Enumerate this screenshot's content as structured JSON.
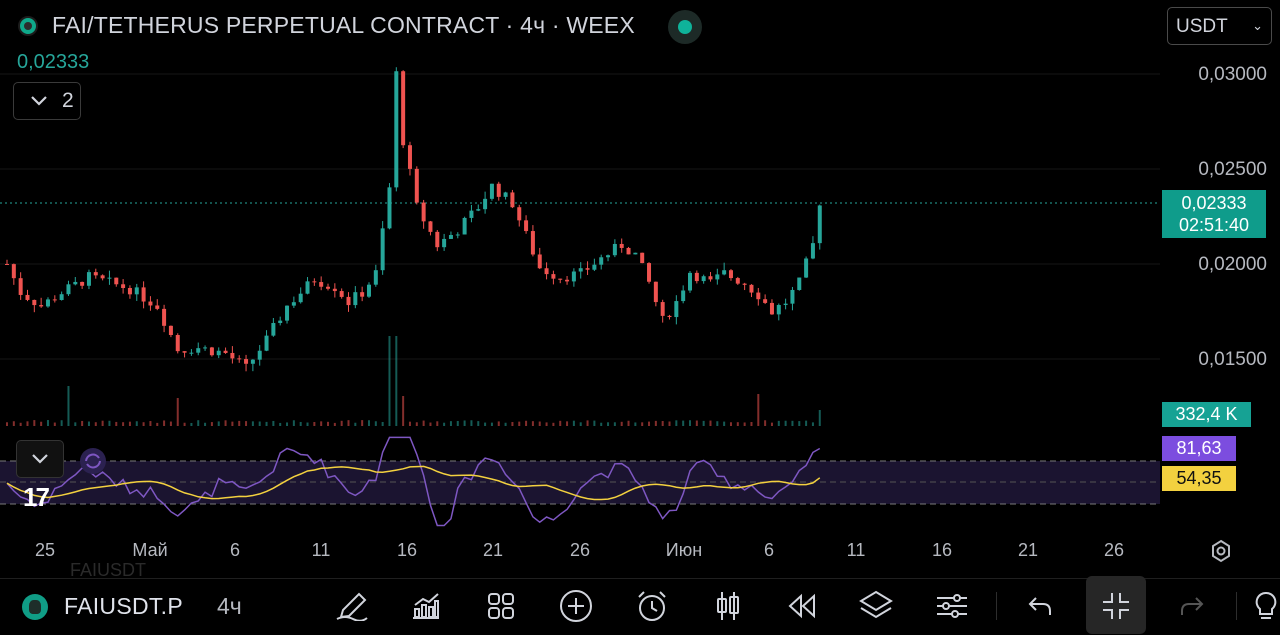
{
  "header": {
    "title": "FAI/TETHERUS PERPETUAL CONTRACT · 4ч · WEEX",
    "last_value": "0,02333",
    "collapse_count": "2",
    "currency": "USDT"
  },
  "price_axis": {
    "labels": [
      "0,03000",
      "0,02500",
      "0,02000",
      "0,01500"
    ],
    "current_price": "0,02333",
    "countdown": "02:51:40",
    "volume_tag": "332,4 K",
    "rsi_tag": "81,63",
    "rsi_ma_tag": "54,35"
  },
  "time_axis": [
    "25",
    "Май",
    "6",
    "11",
    "16",
    "21",
    "26",
    "Июн",
    "6",
    "11",
    "16",
    "21",
    "26"
  ],
  "toolbar": {
    "symbol": "FAIUSDT.P",
    "symbol_ghost": "FAIUSDT",
    "interval": "4ч",
    "icons": [
      "pencil-icon",
      "indicators-icon",
      "layout-grid-icon",
      "add-icon",
      "alarm-icon",
      "candles-icon",
      "replay-icon",
      "layers-icon",
      "settings-sliders-icon",
      "undo-icon",
      "fullscreen-exit-icon",
      "redo-icon"
    ]
  },
  "colors": {
    "up": "#26a69a",
    "down": "#ef5350",
    "rsi": "#7e57c2",
    "rsi_ma": "#f3d13f",
    "price_line": "#26a69a"
  },
  "chart_data": {
    "type": "candlestick",
    "y_axis_ticks": [
      0.03,
      0.025,
      0.02,
      0.015
    ],
    "current_price": 0.02333,
    "price_path": [
      [
        0,
        0.02
      ],
      [
        2,
        0.0185
      ],
      [
        5,
        0.0178
      ],
      [
        8,
        0.0185
      ],
      [
        12,
        0.0193
      ],
      [
        15,
        0.019
      ],
      [
        18,
        0.0187
      ],
      [
        22,
        0.0178
      ],
      [
        25,
        0.0155
      ],
      [
        28,
        0.0156
      ],
      [
        32,
        0.0153
      ],
      [
        35,
        0.0145
      ],
      [
        38,
        0.016
      ],
      [
        41,
        0.0178
      ],
      [
        45,
        0.0192
      ],
      [
        48,
        0.0188
      ],
      [
        50,
        0.018
      ],
      [
        52,
        0.0185
      ],
      [
        54,
        0.0195
      ],
      [
        56,
        0.024
      ],
      [
        57,
        0.03
      ],
      [
        58,
        0.0265
      ],
      [
        60,
        0.023
      ],
      [
        63,
        0.021
      ],
      [
        66,
        0.0218
      ],
      [
        69,
        0.023
      ],
      [
        71,
        0.0241
      ],
      [
        74,
        0.0232
      ],
      [
        76,
        0.0215
      ],
      [
        78,
        0.0198
      ],
      [
        81,
        0.0193
      ],
      [
        84,
        0.0195
      ],
      [
        87,
        0.0203
      ],
      [
        90,
        0.021
      ],
      [
        92,
        0.0205
      ],
      [
        94,
        0.019
      ],
      [
        96,
        0.017
      ],
      [
        98,
        0.018
      ],
      [
        100,
        0.0196
      ],
      [
        103,
        0.019
      ],
      [
        105,
        0.0195
      ],
      [
        108,
        0.019
      ],
      [
        110,
        0.0184
      ],
      [
        112,
        0.0175
      ],
      [
        114,
        0.018
      ],
      [
        116,
        0.019
      ],
      [
        118,
        0.021
      ],
      [
        119,
        0.0233
      ]
    ],
    "rsi_bands": [
      70,
      50,
      30
    ],
    "rsi_last": 81.63,
    "rsi_ma_last": 54.35,
    "volume_last": "332,4 K"
  }
}
